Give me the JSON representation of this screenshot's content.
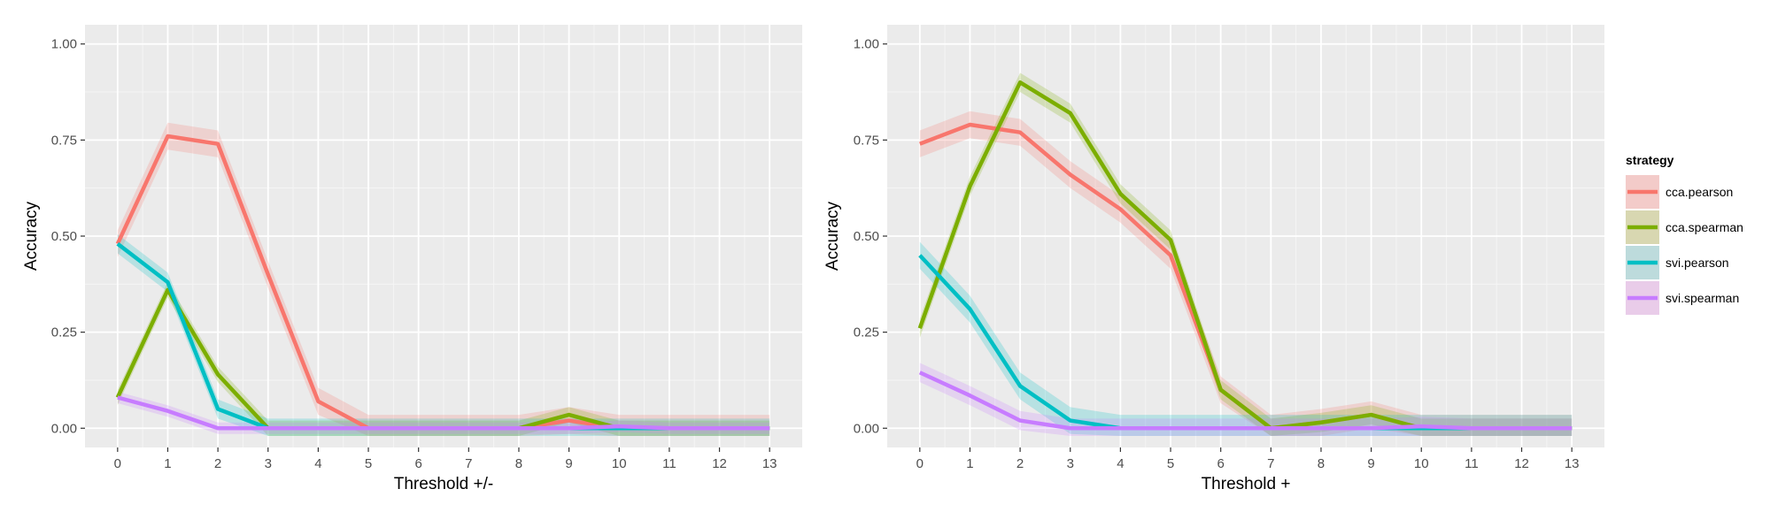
{
  "chart_data": [
    {
      "type": "line",
      "xlabel": "Threshold +/-",
      "ylabel": "Accuracy",
      "xlim": [
        -0.65,
        13.65
      ],
      "ylim": [
        -0.05,
        1.05
      ],
      "x_ticks": [
        0,
        1,
        2,
        3,
        4,
        5,
        6,
        7,
        8,
        9,
        10,
        11,
        12,
        13
      ],
      "y_ticks": [
        0,
        0.25,
        0.5,
        0.75,
        1.0
      ],
      "y_tick_labels": [
        "0.00",
        "0.25",
        "0.50",
        "0.75",
        "1.00"
      ],
      "grid": true,
      "x": [
        0,
        1,
        2,
        3,
        4,
        5,
        6,
        7,
        8,
        9,
        10,
        11,
        12,
        13
      ],
      "series": [
        {
          "name": "cca.pearson",
          "color": "#F8766D",
          "values": [
            0.48,
            0.76,
            0.74,
            0.4,
            0.07,
            0.0,
            0.0,
            0.0,
            0.0,
            0.02,
            0.0,
            0.0,
            0.0,
            0.0
          ],
          "band": 0.035
        },
        {
          "name": "cca.spearman",
          "color": "#7CAE00",
          "values": [
            0.08,
            0.36,
            0.14,
            0.0,
            0.0,
            0.0,
            0.0,
            0.0,
            0.0,
            0.035,
            0.0,
            0.0,
            0.0,
            0.0
          ],
          "band": 0.02
        },
        {
          "name": "svi.pearson",
          "color": "#00BFC4",
          "values": [
            0.48,
            0.38,
            0.05,
            0.0,
            0.0,
            0.0,
            0.0,
            0.0,
            0.0,
            0.0,
            0.0,
            0.0,
            0.0,
            0.0
          ],
          "band": 0.025
        },
        {
          "name": "svi.spearman",
          "color": "#C77CFF",
          "values": [
            0.08,
            0.045,
            0.0,
            0.0,
            0.0,
            0.0,
            0.0,
            0.0,
            0.0,
            0.0,
            0.005,
            0.0,
            0.0,
            0.0
          ],
          "band": 0.015
        }
      ]
    },
    {
      "type": "line",
      "xlabel": "Threshold +",
      "ylabel": "Accuracy",
      "xlim": [
        -0.65,
        13.65
      ],
      "ylim": [
        -0.05,
        1.05
      ],
      "x_ticks": [
        0,
        1,
        2,
        3,
        4,
        5,
        6,
        7,
        8,
        9,
        10,
        11,
        12,
        13
      ],
      "y_ticks": [
        0,
        0.25,
        0.5,
        0.75,
        1.0
      ],
      "y_tick_labels": [
        "0.00",
        "0.25",
        "0.50",
        "0.75",
        "1.00"
      ],
      "grid": true,
      "x": [
        0,
        1,
        2,
        3,
        4,
        5,
        6,
        7,
        8,
        9,
        10,
        11,
        12,
        13
      ],
      "series": [
        {
          "name": "cca.pearson",
          "color": "#F8766D",
          "values": [
            0.74,
            0.79,
            0.77,
            0.66,
            0.57,
            0.45,
            0.1,
            0.0,
            0.015,
            0.035,
            0.0,
            0.0,
            0.0,
            0.0
          ],
          "band": 0.035
        },
        {
          "name": "cca.spearman",
          "color": "#7CAE00",
          "values": [
            0.26,
            0.63,
            0.9,
            0.82,
            0.61,
            0.49,
            0.1,
            0.0,
            0.015,
            0.035,
            0.0,
            0.0,
            0.0,
            0.0
          ],
          "band": 0.025
        },
        {
          "name": "svi.pearson",
          "color": "#00BFC4",
          "values": [
            0.45,
            0.31,
            0.11,
            0.02,
            0.0,
            0.0,
            0.0,
            0.0,
            0.0,
            0.0,
            0.0,
            0.0,
            0.0,
            0.0
          ],
          "band": 0.035
        },
        {
          "name": "svi.spearman",
          "color": "#C77CFF",
          "values": [
            0.145,
            0.085,
            0.02,
            0.0,
            0.0,
            0.0,
            0.0,
            0.0,
            0.0,
            0.0,
            0.005,
            0.0,
            0.0,
            0.0
          ],
          "band": 0.025
        }
      ]
    }
  ],
  "legend": {
    "title": "strategy",
    "placement": "right",
    "items": [
      {
        "label": "cca.pearson",
        "color": "#F8766D"
      },
      {
        "label": "cca.spearman",
        "color": "#7CAE00"
      },
      {
        "label": "svi.pearson",
        "color": "#00BFC4"
      },
      {
        "label": "svi.spearman",
        "color": "#C77CFF"
      }
    ]
  },
  "style": {
    "panel_bg": "#EBEBEB",
    "grid_major": "#FFFFFF",
    "grid_minor": "#F5F5F5",
    "legend_key_bg": "#F2E3E3"
  }
}
